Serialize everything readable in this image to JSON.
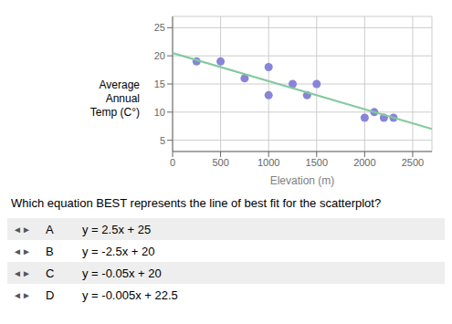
{
  "chart_data": {
    "type": "scatter",
    "xlabel": "Elevation (m)",
    "ylabel": [
      "Average",
      "Annual",
      "Temp (C°)"
    ],
    "series": [
      {
        "type": "scatter",
        "x": [
          250,
          500,
          750,
          1000,
          1000,
          1250,
          1400,
          1500,
          2000,
          2100,
          2200,
          2300
        ],
        "values": [
          19,
          19,
          16,
          18,
          13,
          15,
          13,
          15,
          9,
          10,
          9,
          9
        ]
      },
      {
        "type": "line",
        "x": [
          0,
          2700
        ],
        "values": [
          20.5,
          7.0
        ]
      }
    ],
    "xlim": [
      0,
      2700
    ],
    "ylim": [
      3,
      27
    ],
    "xticks": [
      0,
      500,
      1000,
      1500,
      2000,
      2500
    ],
    "yticks": [
      5,
      10,
      15,
      20,
      25
    ],
    "grid": true
  },
  "question": "Which equation BEST represents the line of best fit for the scatterplot?",
  "option_icon": "◄►",
  "options": [
    {
      "letter": "A",
      "text": "y = 2.5x + 25"
    },
    {
      "letter": "B",
      "text": "y = -2.5x + 20"
    },
    {
      "letter": "C",
      "text": "y = -0.05x + 20"
    },
    {
      "letter": "D",
      "text": "y = -0.005x + 22.5"
    }
  ]
}
